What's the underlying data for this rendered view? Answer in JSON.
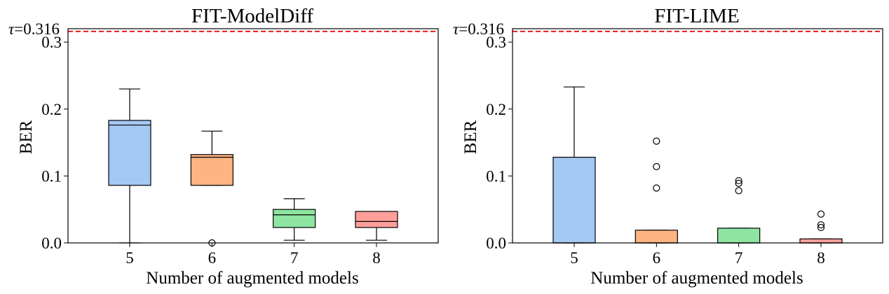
{
  "chart_data": [
    {
      "type": "box",
      "title": "FIT-ModelDiff",
      "xlabel": "Number of augmented models",
      "ylabel": "BER",
      "ylim": [
        0,
        0.32
      ],
      "yticks": [
        0.0,
        0.1,
        0.2,
        0.3
      ],
      "ytick_labels": [
        "0.0",
        "0.1",
        "0.2",
        "0.3"
      ],
      "threshold": {
        "value": 0.316,
        "label": "=0.316",
        "symbol": "τ",
        "color": "#e31a1c"
      },
      "categories": [
        "5",
        "6",
        "7",
        "8"
      ],
      "boxes": [
        {
          "category": "5",
          "whislo": 0.0,
          "q1": 0.086,
          "median": 0.176,
          "q3": 0.183,
          "whishi": 0.23,
          "fliers": [],
          "color": "#a3c8f4"
        },
        {
          "category": "6",
          "whislo": 0.086,
          "q1": 0.086,
          "median": 0.128,
          "q3": 0.132,
          "whishi": 0.167,
          "fliers": [
            0.0
          ],
          "color": "#ffb482"
        },
        {
          "category": "7",
          "whislo": 0.004,
          "q1": 0.023,
          "median": 0.042,
          "q3": 0.05,
          "whishi": 0.066,
          "fliers": [],
          "color": "#8de5a1"
        },
        {
          "category": "8",
          "whislo": 0.004,
          "q1": 0.023,
          "median": 0.032,
          "q3": 0.047,
          "whishi": 0.047,
          "fliers": [],
          "color": "#ff9f9b"
        }
      ]
    },
    {
      "type": "box",
      "title": "FIT-LIME",
      "xlabel": "Number of augmented models",
      "ylabel": "BER",
      "ylim": [
        0,
        0.32
      ],
      "yticks": [
        0.0,
        0.1,
        0.2,
        0.3
      ],
      "ytick_labels": [
        "0.0",
        "0.1",
        "0.2",
        "0.3"
      ],
      "threshold": {
        "value": 0.316,
        "label": "=0.316",
        "symbol": "τ",
        "color": "#e31a1c"
      },
      "categories": [
        "5",
        "6",
        "7",
        "8"
      ],
      "boxes": [
        {
          "category": "5",
          "whislo": 0.0,
          "q1": 0.0,
          "median": 0.0,
          "q3": 0.128,
          "whishi": 0.233,
          "fliers": [],
          "color": "#a3c8f4"
        },
        {
          "category": "6",
          "whislo": 0.0,
          "q1": 0.0,
          "median": 0.0,
          "q3": 0.019,
          "whishi": 0.019,
          "fliers": [
            0.082,
            0.114,
            0.152
          ],
          "color": "#ffb482"
        },
        {
          "category": "7",
          "whislo": 0.0,
          "q1": 0.0,
          "median": 0.0,
          "q3": 0.022,
          "whishi": 0.022,
          "fliers": [
            0.078,
            0.089,
            0.093
          ],
          "color": "#8de5a1"
        },
        {
          "category": "8",
          "whislo": 0.0,
          "q1": 0.0,
          "median": 0.0,
          "q3": 0.006,
          "whishi": 0.006,
          "fliers": [
            0.023,
            0.027,
            0.043
          ],
          "color": "#ff9f9b"
        }
      ]
    }
  ]
}
